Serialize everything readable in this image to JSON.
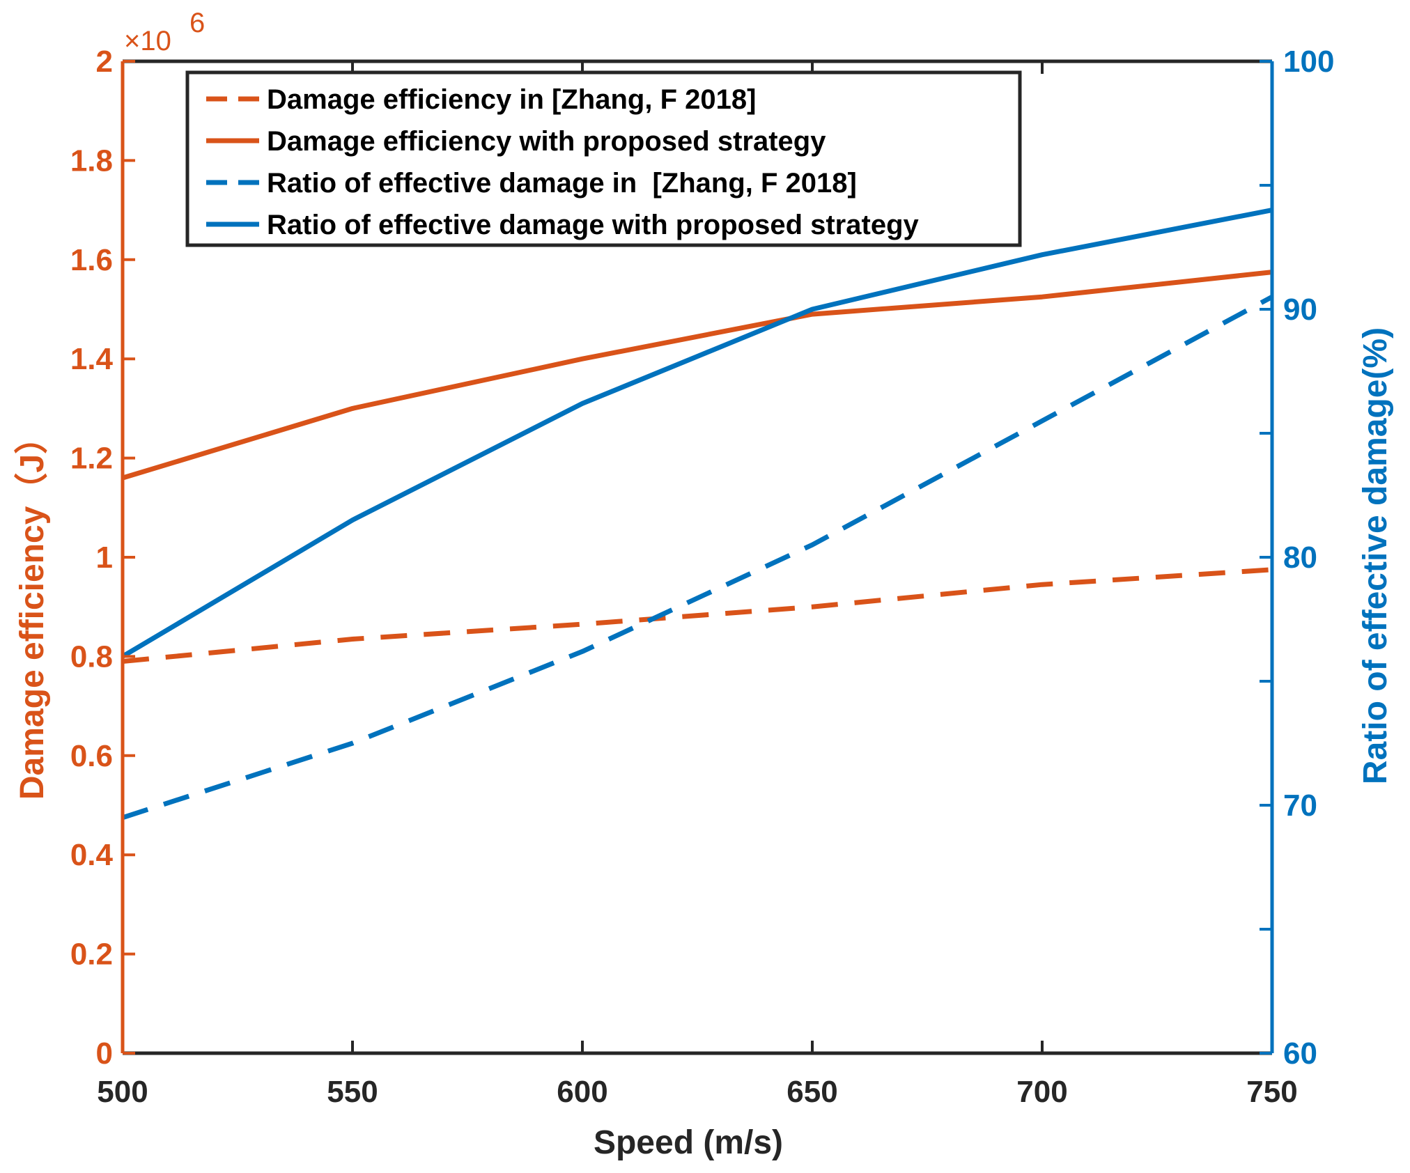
{
  "chart_data": {
    "type": "line",
    "title": "",
    "x": [
      500,
      550,
      600,
      650,
      700,
      750
    ],
    "xlabel": "Speed (m/s)",
    "xlim": [
      500,
      750
    ],
    "xticks": [
      "500",
      "550",
      "600",
      "650",
      "700",
      "750"
    ],
    "left_axis": {
      "label": "Damage efficiency（J）",
      "ylim": [
        0,
        2
      ],
      "ticks": [
        "0",
        "0.2",
        "0.4",
        "0.6",
        "0.8",
        "1",
        "1.2",
        "1.4",
        "1.6",
        "1.8",
        "2"
      ],
      "multiplier": "×10",
      "exponent": "6",
      "color": "#D95319"
    },
    "right_axis": {
      "label": "Ratio of effective damage(%)",
      "ylim": [
        60,
        100
      ],
      "ticks": [
        "60",
        "70",
        "80",
        "90",
        "100"
      ],
      "color": "#0072BD"
    },
    "series": [
      {
        "name": "Damage efficiency in [Zhang, F 2018]",
        "axis": "left",
        "style": "dashed",
        "color": "#D95319",
        "values": [
          0.79,
          0.835,
          0.865,
          0.9,
          0.945,
          0.975
        ]
      },
      {
        "name": "Damage efficiency with proposed strategy",
        "axis": "left",
        "style": "solid",
        "color": "#D95319",
        "values": [
          1.16,
          1.3,
          1.4,
          1.49,
          1.525,
          1.575
        ]
      },
      {
        "name": "Ratio of effective damage in  [Zhang, F 2018]",
        "axis": "right",
        "style": "dashed",
        "color": "#0072BD",
        "values": [
          69.5,
          72.5,
          76.2,
          80.5,
          85.5,
          90.5
        ]
      },
      {
        "name": "Ratio of effective damage with proposed strategy",
        "axis": "right",
        "style": "solid",
        "color": "#0072BD",
        "values": [
          76.0,
          81.5,
          86.2,
          90.0,
          92.2,
          94.0
        ]
      }
    ],
    "legend_position": "top-left",
    "grid": false
  }
}
